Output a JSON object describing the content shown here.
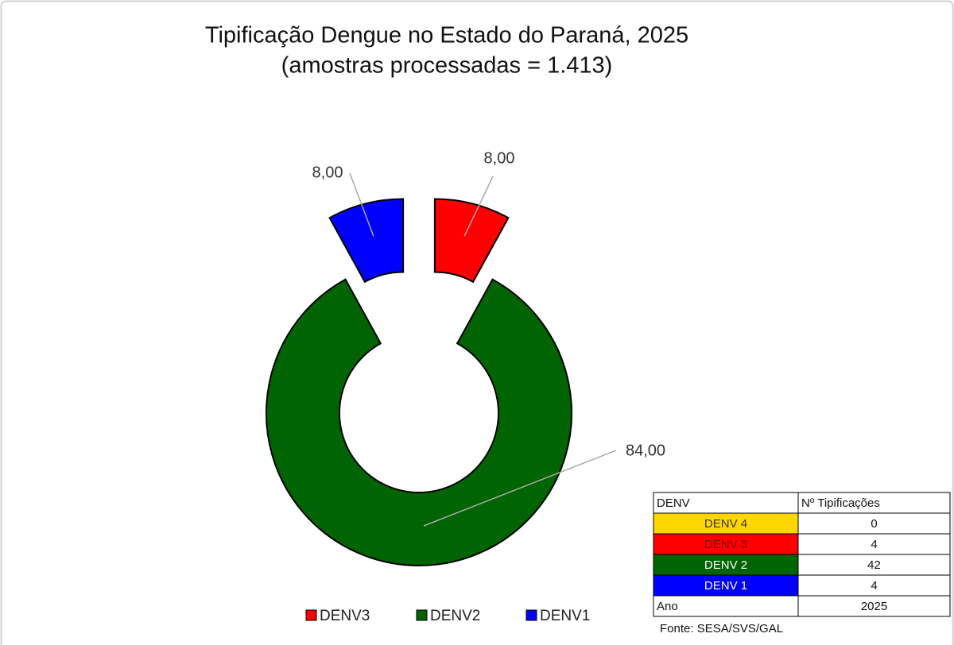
{
  "chart_data": {
    "type": "donut",
    "title": [
      "Tipificação Dengue no Estado do Paraná, 2025",
      "(amostras processadas = 1.413)"
    ],
    "categories": [
      "DENV3",
      "DENV2",
      "DENV1"
    ],
    "values": [
      8,
      84,
      8
    ],
    "value_labels": [
      "8,00",
      "84,00",
      "8,00"
    ],
    "colors": [
      "#ff0000",
      "#006400",
      "#0000ff"
    ],
    "legend": "bottom"
  },
  "table": {
    "header": [
      "DENV",
      "Nº Tipificações"
    ],
    "rows": [
      [
        "DENV 4",
        "0"
      ],
      [
        "DENV 3",
        "4"
      ],
      [
        "DENV 2",
        "42"
      ],
      [
        "DENV 1",
        "4"
      ],
      [
        "Ano",
        "2025"
      ]
    ],
    "row_colors": [
      "#ffd700",
      "#ff0000",
      "#006400",
      "#0000ff",
      "#ffffff"
    ]
  },
  "source": "Fonte: SESA/SVS/GAL"
}
